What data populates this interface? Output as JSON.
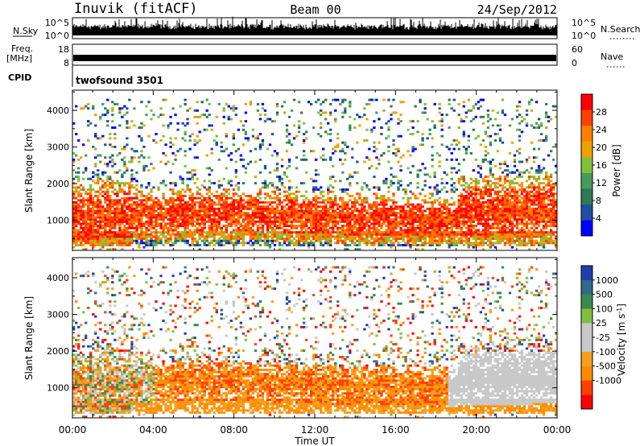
{
  "header": {
    "station": "Inuvik (fitACF)",
    "beam": "Beam 00",
    "date": "24/Sep/2012"
  },
  "noise_panel": {
    "left_label": "N.Sky",
    "left_ticks": [
      "10^5",
      "10^0"
    ],
    "right_ticks": [
      "10^5",
      "10^0"
    ],
    "right_label": "N.Search"
  },
  "freq_panel": {
    "left_label_1": "Freq.",
    "left_label_2": "[MHz]",
    "left_ticks": [
      "18",
      "8"
    ],
    "right_ticks": [
      "60",
      "0"
    ],
    "right_label": "Nave"
  },
  "cpid_panel": {
    "label": "CPID",
    "value": "twofsound 3501"
  },
  "colors": {
    "power": [
      "#0000ff",
      "#1e4fa0",
      "#2f7a55",
      "#4a9a5a",
      "#7fc040",
      "#f0a000",
      "#ff7f00",
      "#ff4000",
      "#ff0000"
    ],
    "velocity": [
      "#ff0000",
      "#ff4000",
      "#ff8c00",
      "#f5a020",
      "#c8c8c8",
      "#c8c8c8",
      "#7fc040",
      "#3a8a50",
      "#2f6a8a",
      "#1e3fb0"
    ]
  },
  "chart_data": [
    {
      "type": "heatmap",
      "name": "power",
      "ylabel": "Slant Range [km]",
      "yticks": [
        "1000",
        "2000",
        "3000",
        "4000"
      ],
      "ylim": [
        180,
        4550
      ],
      "xlim_hours": [
        0,
        24
      ],
      "colorbar": {
        "label": "Power [dB]",
        "ticks": [
          "4",
          "8",
          "12",
          "16",
          "20",
          "24",
          "28"
        ],
        "range": [
          0,
          32
        ]
      },
      "description_of_pattern": [
        "strong echoes 500-2000 km all day",
        "sparse echoes 2000-4000 km"
      ]
    },
    {
      "type": "heatmap",
      "name": "velocity",
      "ylabel": "Slant Range [km]",
      "yticks": [
        "1000",
        "2000",
        "3000",
        "4000"
      ],
      "ylim": [
        180,
        4550
      ],
      "xlim_hours": [
        0,
        24
      ],
      "colorbar": {
        "label": "Velocity [m s^-1]",
        "ticks": [
          "1000",
          "500",
          "100",
          "25",
          "-25",
          "-100",
          "-500",
          "-1000"
        ]
      }
    }
  ],
  "xaxis": {
    "ticks": [
      "00:00",
      "04:00",
      "08:00",
      "12:00",
      "16:00",
      "20:00",
      "00:00"
    ],
    "label": "Time UT"
  }
}
